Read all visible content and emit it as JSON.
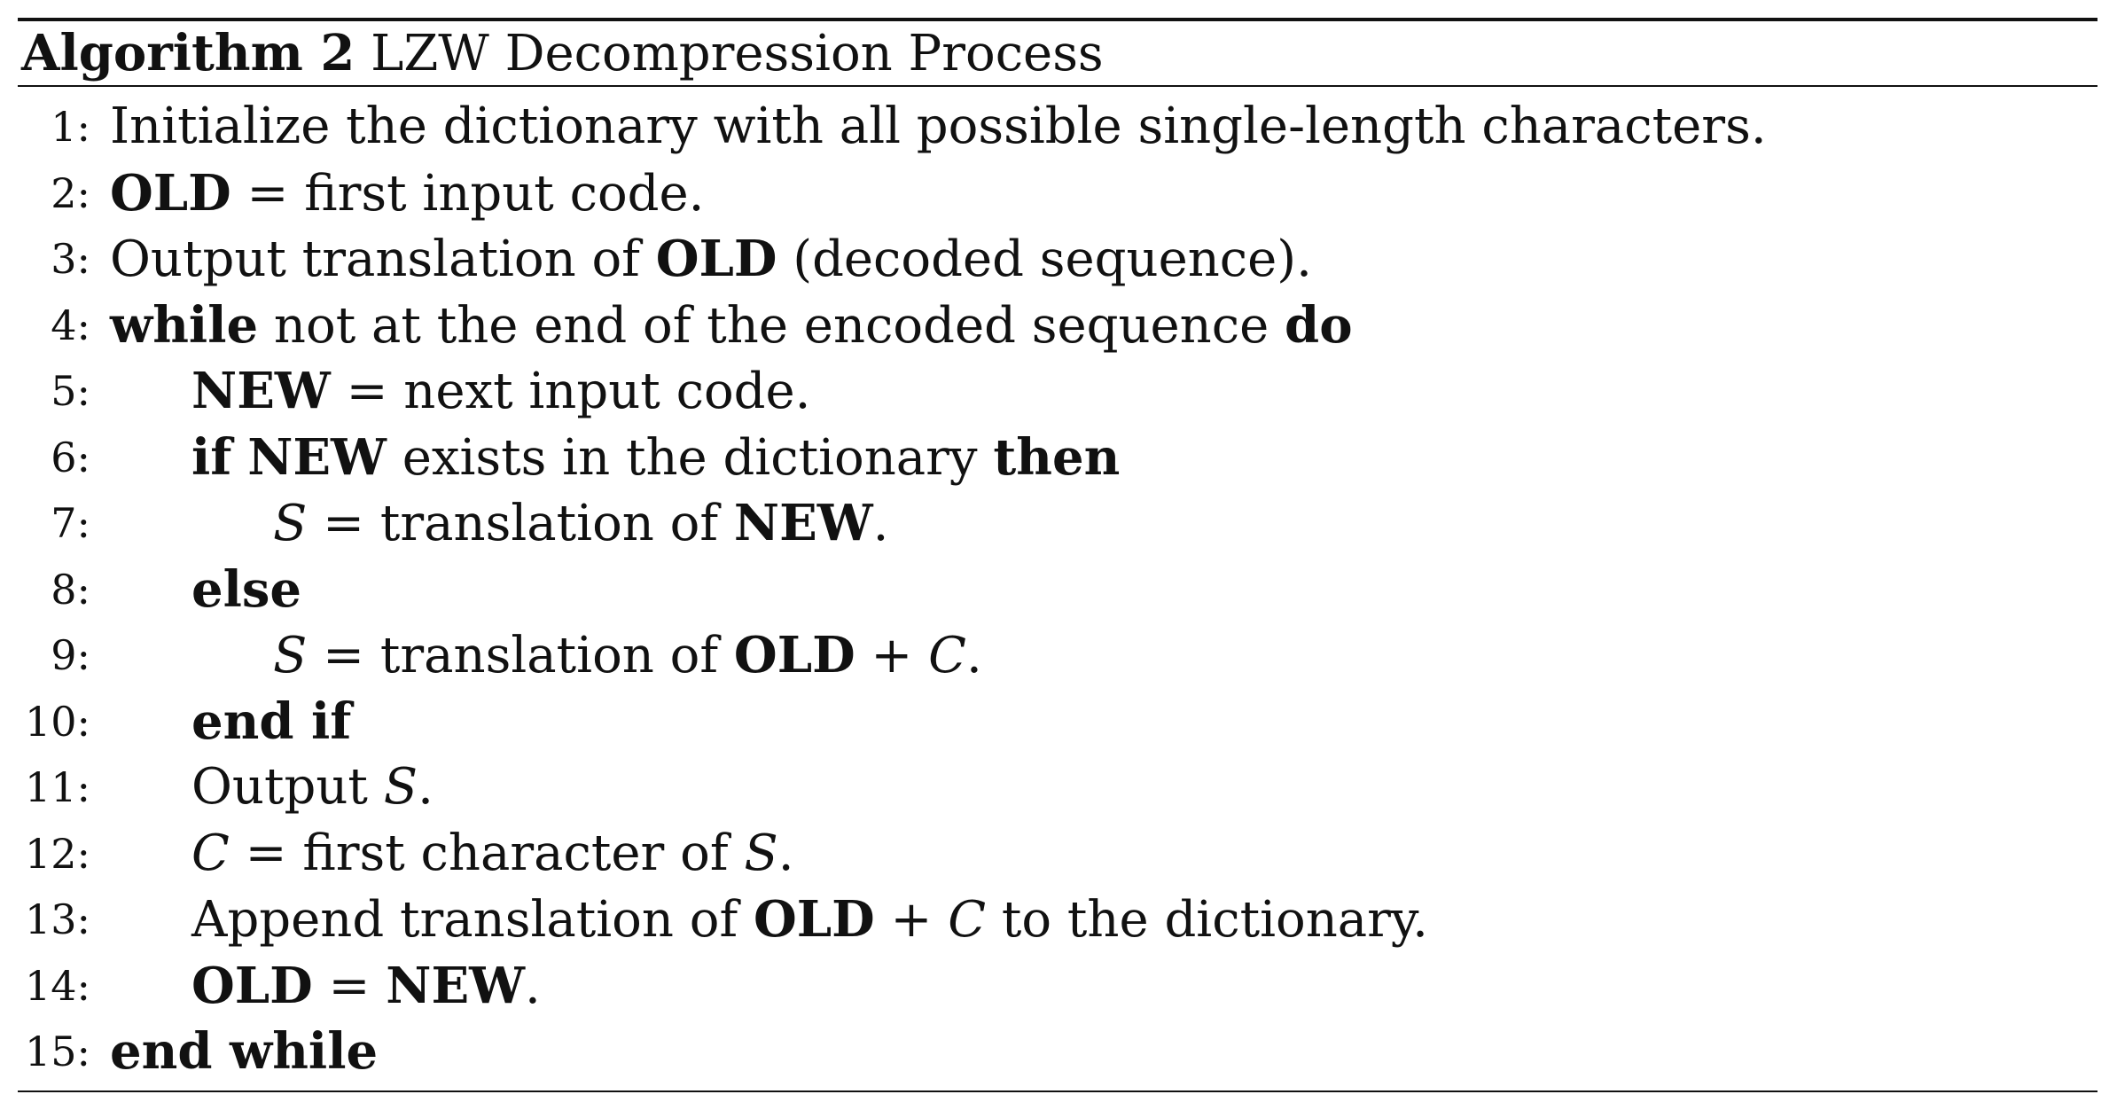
{
  "algorithm": {
    "label": "Algorithm 2",
    "title": "LZW Decompression Process"
  },
  "lines": [
    {
      "num": "1:",
      "parts": [
        "Initialize the dictionary with all possible single-length characters."
      ]
    },
    {
      "num": "2:",
      "parts": [
        "OLD",
        " = first input code."
      ]
    },
    {
      "num": "3:",
      "parts": [
        "Output translation of ",
        "OLD",
        " (decoded sequence)."
      ]
    },
    {
      "num": "4:",
      "parts": [
        "while",
        " not at the end of the encoded sequence ",
        "do"
      ]
    },
    {
      "num": "5:",
      "parts": [
        "NEW",
        " = next input code."
      ]
    },
    {
      "num": "6:",
      "parts": [
        "if",
        " ",
        "NEW",
        " exists in the dictionary ",
        "then"
      ]
    },
    {
      "num": "7:",
      "parts": [
        "S",
        " = translation of ",
        "NEW",
        "."
      ]
    },
    {
      "num": "8:",
      "parts": [
        "else"
      ]
    },
    {
      "num": "9:",
      "parts": [
        "S",
        " = translation of ",
        "OLD",
        " + ",
        "C",
        "."
      ]
    },
    {
      "num": "10:",
      "parts": [
        "end if"
      ]
    },
    {
      "num": "11:",
      "parts": [
        "Output ",
        "S",
        "."
      ]
    },
    {
      "num": "12:",
      "parts": [
        "C",
        " = first character of ",
        "S",
        "."
      ]
    },
    {
      "num": "13:",
      "parts": [
        "Append translation of ",
        "OLD",
        " + ",
        "C",
        " to the dictionary."
      ]
    },
    {
      "num": "14:",
      "parts": [
        "OLD",
        " = ",
        "NEW",
        "."
      ]
    },
    {
      "num": "15:",
      "parts": [
        "end while"
      ]
    }
  ]
}
